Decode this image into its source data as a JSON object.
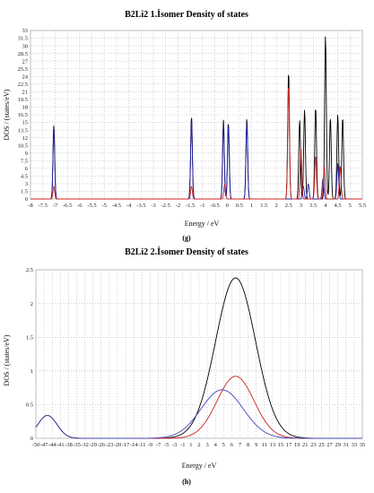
{
  "chart_data": [
    {
      "type": "line",
      "title": "B2Li2 1.İsomer Density of states",
      "xlabel": "Energy / eV",
      "ylabel": "DOS / (states/eV)",
      "caption": "(g)",
      "xlim": [
        -8,
        5.5
      ],
      "ylim": [
        0,
        33
      ],
      "grid": true,
      "x_ticks": [
        "-8",
        "-7.5",
        "-7",
        "-6.5",
        "-6",
        "-5.5",
        "-5",
        "-4.5",
        "-4",
        "-3.5",
        "-3",
        "-2.5",
        "-2",
        "-1.5",
        "-1",
        "-0.5",
        "0",
        "0.5",
        "1",
        "1.5",
        "2",
        "2.5",
        "3",
        "3.5",
        "4",
        "4.5",
        "5",
        "5.5"
      ],
      "y_ticks": [
        "0",
        "1.5",
        "3",
        "4.5",
        "6",
        "7.5",
        "9",
        "10.5",
        "12",
        "13.5",
        "15",
        "16.5",
        "18",
        "19.5",
        "21",
        "22.5",
        "24",
        "25.5",
        "27",
        "28.5",
        "30",
        "31.5",
        "33"
      ],
      "series": [
        {
          "color": "#000000",
          "peaks": [
            [
              -7.05,
              14.5
            ],
            [
              -1.45,
              16.2
            ],
            [
              -0.15,
              15.5
            ],
            [
              0.05,
              15.0
            ],
            [
              0.8,
              15.8
            ],
            [
              2.5,
              25.0
            ],
            [
              2.95,
              15.5
            ],
            [
              3.15,
              17.5
            ],
            [
              3.6,
              18.0
            ],
            [
              4.0,
              32.0
            ],
            [
              4.2,
              16.0
            ],
            [
              4.5,
              16.5
            ],
            [
              4.7,
              16.0
            ]
          ]
        },
        {
          "color": "#1f1fa8",
          "peaks": [
            [
              -7.05,
              14.0
            ],
            [
              -1.45,
              15.5
            ],
            [
              -0.15,
              14.5
            ],
            [
              0.05,
              14.5
            ],
            [
              0.8,
              15.0
            ],
            [
              3.1,
              2.5
            ],
            [
              3.3,
              3.0
            ],
            [
              3.9,
              4.0
            ],
            [
              4.5,
              7.0
            ]
          ]
        },
        {
          "color": "#cc2222",
          "peaks": [
            [
              -7.05,
              2.5
            ],
            [
              -1.45,
              2.5
            ],
            [
              -0.1,
              3.0
            ],
            [
              2.5,
              22.5
            ],
            [
              3.0,
              10.0
            ],
            [
              3.6,
              8.5
            ],
            [
              3.95,
              6.5
            ],
            [
              4.6,
              6.5
            ]
          ]
        }
      ]
    },
    {
      "type": "line",
      "title": "B2Li2 2.İsomer Density of states",
      "xlabel": "Energy / eV",
      "ylabel": "DOS / (states/eV)",
      "caption": "(h)",
      "xlim": [
        -50,
        35
      ],
      "ylim": [
        0,
        2.5
      ],
      "grid": true,
      "x_ticks": [
        "-50",
        "-47",
        "-44",
        "-41",
        "-38",
        "-35",
        "-32",
        "-29",
        "-26",
        "-23",
        "-20",
        "-17",
        "-14",
        "-11",
        "-9",
        "-7",
        "-5",
        "-3",
        "-1",
        "1",
        "2",
        "3",
        "4",
        "5",
        "6",
        "7",
        "8",
        "9",
        "11",
        "13",
        "15",
        "17",
        "19",
        "21",
        "23",
        "25",
        "27",
        "29",
        "31",
        "33",
        "35"
      ],
      "y_ticks": [
        "0",
        "0.5",
        "1",
        "1.5",
        "2",
        "2.5"
      ],
      "series": [
        {
          "color": "#000000",
          "peaks": [
            [
              -47,
              0.34,
              2.5
            ],
            [
              2,
              2.38,
              5.2
            ]
          ]
        },
        {
          "color": "#cc2222",
          "peaks": [
            [
              -47,
              0.34,
              2.5
            ],
            [
              2,
              0.92,
              4.8
            ]
          ]
        },
        {
          "color": "#4444bb",
          "peaks": [
            [
              -47,
              0.34,
              2.5
            ],
            [
              -1.5,
              0.72,
              5.5
            ]
          ]
        }
      ]
    }
  ]
}
